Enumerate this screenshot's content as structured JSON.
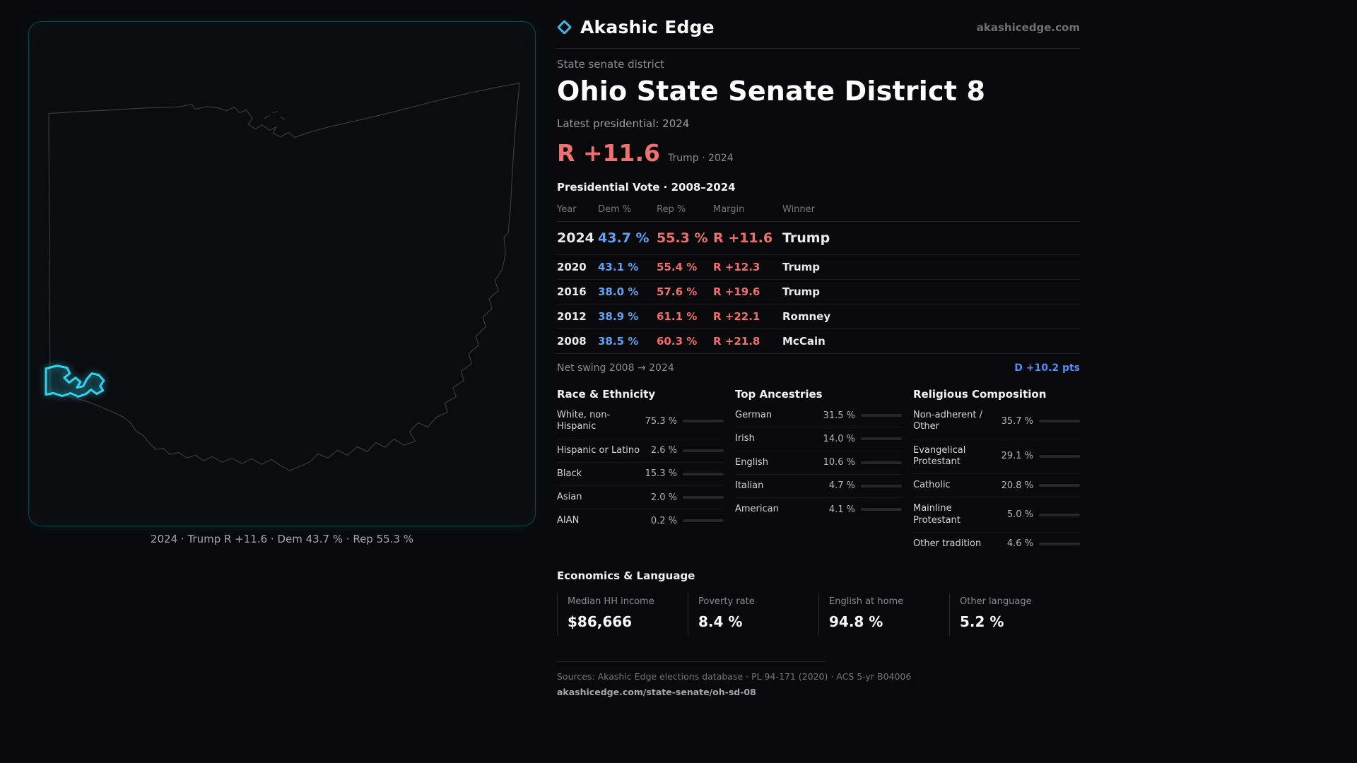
{
  "brand": {
    "name": "Akashic Edge",
    "domain": "akashicedge.com",
    "accent": "#3db6e8"
  },
  "map": {
    "caption": "2024 · Trump R +11.6 · Dem 43.7 % · Rep 55.3 %"
  },
  "profile": {
    "kicker": "State senate district",
    "title": "Ohio State Senate District 8",
    "latest_label": "Latest presidential: 2024",
    "headline_margin": "R +11.6",
    "headline_context": "Trump · 2024"
  },
  "vote": {
    "title": "Presidential Vote · 2008–2024",
    "columns": {
      "year": "Year",
      "dem": "Dem %",
      "rep": "Rep %",
      "margin": "Margin",
      "winner": "Winner"
    },
    "rows": [
      {
        "year": "2024",
        "dem": "43.7 %",
        "rep": "55.3 %",
        "margin": "R +11.6",
        "winner": "Trump"
      },
      {
        "year": "2020",
        "dem": "43.1 %",
        "rep": "55.4 %",
        "margin": "R +12.3",
        "winner": "Trump"
      },
      {
        "year": "2016",
        "dem": "38.0 %",
        "rep": "57.6 %",
        "margin": "R +19.6",
        "winner": "Trump"
      },
      {
        "year": "2012",
        "dem": "38.9 %",
        "rep": "61.1 %",
        "margin": "R +22.1",
        "winner": "Romney"
      },
      {
        "year": "2008",
        "dem": "38.5 %",
        "rep": "60.3 %",
        "margin": "R +21.8",
        "winner": "McCain"
      }
    ],
    "swing_label": "Net swing 2008 → 2024",
    "swing_value": "D +10.2 pts"
  },
  "demographics": {
    "race": {
      "title": "Race & Ethnicity",
      "items": [
        {
          "label": "White, non-Hispanic",
          "value": "75.3 %",
          "pct": 75.3,
          "color": "#c8cdd7"
        },
        {
          "label": "Hispanic or Latino",
          "value": "2.6 %",
          "pct": 2.6,
          "color": "#f0734a"
        },
        {
          "label": "Black",
          "value": "15.3 %",
          "pct": 15.3,
          "color": "#8b7cf6"
        },
        {
          "label": "Asian",
          "value": "2.0 %",
          "pct": 2.0,
          "color": "#34d399"
        },
        {
          "label": "AIAN",
          "value": "0.2 %",
          "pct": 0.2,
          "color": "#a1a1aa"
        }
      ]
    },
    "ancestries": {
      "title": "Top Ancestries",
      "items": [
        {
          "label": "German",
          "value": "31.5 %",
          "pct": 31.5,
          "color": "#b6bcc6"
        },
        {
          "label": "Irish",
          "value": "14.0 %",
          "pct": 14.0,
          "color": "#7da7e8"
        },
        {
          "label": "English",
          "value": "10.6 %",
          "pct": 10.6,
          "color": "#e5e7eb"
        },
        {
          "label": "Italian",
          "value": "4.7 %",
          "pct": 4.7,
          "color": "#9ca3af"
        },
        {
          "label": "American",
          "value": "4.1 %",
          "pct": 4.1,
          "color": "#9ca3af"
        }
      ]
    },
    "religion": {
      "title": "Religious Composition",
      "items": [
        {
          "label": "Non-adherent / Other",
          "value": "35.7 %",
          "pct": 35.7,
          "color": "#9ca3af"
        },
        {
          "label": "Evangelical Protestant",
          "value": "29.1 %",
          "pct": 29.1,
          "color": "#ef6e6e"
        },
        {
          "label": "Catholic",
          "value": "20.8 %",
          "pct": 20.8,
          "color": "#f0b83c"
        },
        {
          "label": "Mainline Protestant",
          "value": "5.0 %",
          "pct": 5.0,
          "color": "#5b8cf5"
        },
        {
          "label": "Other tradition",
          "value": "4.6 %",
          "pct": 4.6,
          "color": "#9ca3af"
        }
      ]
    }
  },
  "economics": {
    "title": "Economics & Language",
    "stats": [
      {
        "label": "Median HH income",
        "value": "$86,666"
      },
      {
        "label": "Poverty rate",
        "value": "8.4 %"
      },
      {
        "label": "English at home",
        "value": "94.8 %"
      },
      {
        "label": "Other language",
        "value": "5.2 %"
      }
    ]
  },
  "footer": {
    "sources": "Sources: Akashic Edge elections database · PL 94-171 (2020) · ACS 5-yr B04006",
    "permalink": "akashicedge.com/state-senate/oh-sd-08"
  }
}
